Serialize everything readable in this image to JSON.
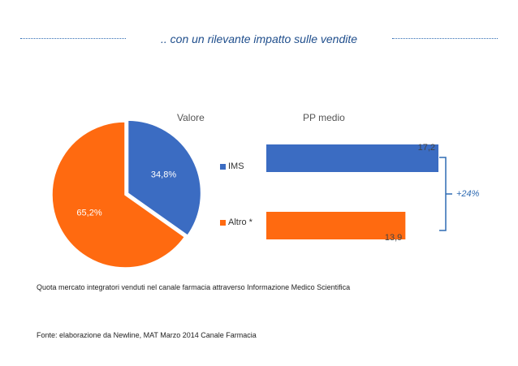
{
  "header": {
    "title": ".. con un rilevante impatto sulle vendite"
  },
  "colors": {
    "blue": "#3b6cc2",
    "orange": "#ff6a10",
    "accent_line": "#2f6bb3",
    "bracket": "#2f6bb3",
    "growth_text": "#2f6bb3"
  },
  "chart_data": [
    {
      "type": "pie",
      "title": "Valore",
      "slices": [
        {
          "label": "IMS",
          "value": 34.8,
          "display": "34,8%",
          "color": "#3b6cc2"
        },
        {
          "label": "Altro *",
          "value": 65.2,
          "display": "65,2%",
          "color": "#ff6a10"
        }
      ]
    },
    {
      "type": "bar",
      "orientation": "horizontal",
      "title": "PP medio",
      "categories": [
        "IMS",
        "Altro *"
      ],
      "values": [
        17.2,
        13.9
      ],
      "value_labels": [
        "17,2",
        "13,9"
      ],
      "colors": [
        "#3b6cc2",
        "#ff6a10"
      ],
      "annotation": "+24%",
      "xlim": [
        0,
        17.2
      ]
    }
  ],
  "captions": {
    "note": "Quota mercato integratori venduti nel canale farmacia attraverso Informazione Medico Scientifica",
    "source": "Fonte: elaborazione da Newline, MAT Marzo 2014 Canale Farmacia"
  }
}
